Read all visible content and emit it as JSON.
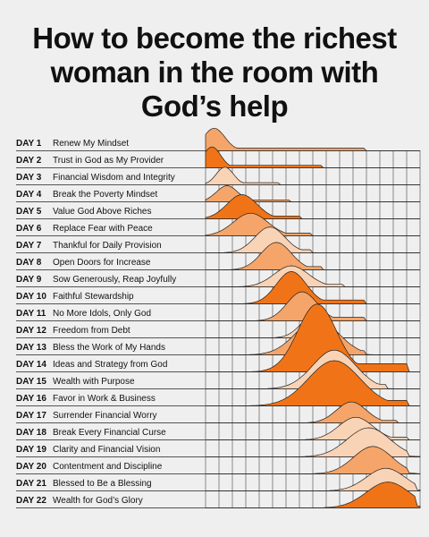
{
  "title_lines": [
    "How to become the richest",
    "woman in the room with",
    "God’s help"
  ],
  "colors": {
    "dark": "#f07417",
    "mid": "#f5a56a",
    "light": "#f9d3b5",
    "grid": "#444444",
    "background": "#efefef"
  },
  "days": [
    {
      "day": "DAY 1",
      "label": "Renew My Mindset"
    },
    {
      "day": "DAY 2",
      "label": "Trust in God as My Provider"
    },
    {
      "day": "DAY 3",
      "label": "Financial Wisdom and Integrity"
    },
    {
      "day": "DAY 4",
      "label": "Break the Poverty Mindset"
    },
    {
      "day": "DAY 5",
      "label": "Value God Above Riches"
    },
    {
      "day": "DAY 6",
      "label": "Replace Fear with Peace"
    },
    {
      "day": "DAY 7",
      "label": "Thankful for Daily Provision"
    },
    {
      "day": "DAY 8",
      "label": "Open Doors for Increase"
    },
    {
      "day": "DAY 9",
      "label": "Sow Generously, Reap Joyfully"
    },
    {
      "day": "DAY 10",
      "label": "Faithful Stewardship"
    },
    {
      "day": "DAY 11",
      "label": "No More Idols, Only God"
    },
    {
      "day": "DAY 12",
      "label": "Freedom from Debt"
    },
    {
      "day": "DAY 13",
      "label": "Bless the Work of My Hands"
    },
    {
      "day": "DAY 14",
      "label": "Ideas and Strategy from God"
    },
    {
      "day": "DAY 15",
      "label": "Wealth with Purpose"
    },
    {
      "day": "DAY 16",
      "label": "Favor in Work & Business"
    },
    {
      "day": "DAY 17",
      "label": "Surrender Financial Worry"
    },
    {
      "day": "DAY 18",
      "label": "Break Every Financial Curse"
    },
    {
      "day": "DAY 19",
      "label": "Clarity and Financial Vision"
    },
    {
      "day": "DAY 20",
      "label": "Contentment and Discipline"
    },
    {
      "day": "DAY 21",
      "label": "Blessed to Be a Blessing"
    },
    {
      "day": "DAY 22",
      "label": "Wealth for God’s Glory"
    }
  ],
  "ridges": [
    {
      "peak": 0.04,
      "spread": 0.05,
      "amp": 1.4,
      "tail": 0.75,
      "shade": "mid"
    },
    {
      "peak": 0.03,
      "spread": 0.04,
      "amp": 1.3,
      "tail": 0.55,
      "shade": "dark"
    },
    {
      "peak": 0.09,
      "spread": 0.04,
      "amp": 1.1,
      "tail": 0.35,
      "shade": "light"
    },
    {
      "peak": 0.1,
      "spread": 0.05,
      "amp": 1.0,
      "tail": 0.4,
      "shade": "mid"
    },
    {
      "peak": 0.17,
      "spread": 0.07,
      "amp": 1.5,
      "tail": 0.45,
      "shade": "dark"
    },
    {
      "peak": 0.21,
      "spread": 0.08,
      "amp": 1.4,
      "tail": 0.5,
      "shade": "mid"
    },
    {
      "peak": 0.3,
      "spread": 0.07,
      "amp": 1.6,
      "tail": 0.5,
      "shade": "light"
    },
    {
      "peak": 0.33,
      "spread": 0.07,
      "amp": 1.7,
      "tail": 0.55,
      "shade": "mid"
    },
    {
      "peak": 0.4,
      "spread": 0.08,
      "amp": 1.3,
      "tail": 0.65,
      "shade": "light"
    },
    {
      "peak": 0.4,
      "spread": 0.07,
      "amp": 2.0,
      "tail": 0.75,
      "shade": "dark"
    },
    {
      "peak": 0.45,
      "spread": 0.07,
      "amp": 1.8,
      "tail": 0.75,
      "shade": "mid"
    },
    {
      "peak": 0.5,
      "spread": 0.06,
      "amp": 1.3,
      "tail": 0.6,
      "shade": "light"
    },
    {
      "peak": 0.52,
      "spread": 0.1,
      "amp": 2.2,
      "tail": 0.75,
      "shade": "mid"
    },
    {
      "peak": 0.52,
      "spread": 0.09,
      "amp": 4.2,
      "tail": 0.95,
      "shade": "dark"
    },
    {
      "peak": 0.6,
      "spread": 0.1,
      "amp": 2.4,
      "tail": 0.85,
      "shade": "light"
    },
    {
      "peak": 0.6,
      "spread": 0.12,
      "amp": 2.8,
      "tail": 0.95,
      "shade": "dark"
    },
    {
      "peak": 0.68,
      "spread": 0.07,
      "amp": 1.3,
      "tail": 0.9,
      "shade": "mid"
    },
    {
      "peak": 0.7,
      "spread": 0.08,
      "amp": 1.4,
      "tail": 0.95,
      "shade": "light"
    },
    {
      "peak": 0.76,
      "spread": 0.1,
      "amp": 1.8,
      "tail": 0.95,
      "shade": "light"
    },
    {
      "peak": 0.78,
      "spread": 0.09,
      "amp": 1.7,
      "tail": 0.95,
      "shade": "mid"
    },
    {
      "peak": 0.84,
      "spread": 0.09,
      "amp": 1.4,
      "tail": 0.98,
      "shade": "light"
    },
    {
      "peak": 0.85,
      "spread": 0.1,
      "amp": 1.6,
      "tail": 0.98,
      "shade": "dark"
    }
  ]
}
